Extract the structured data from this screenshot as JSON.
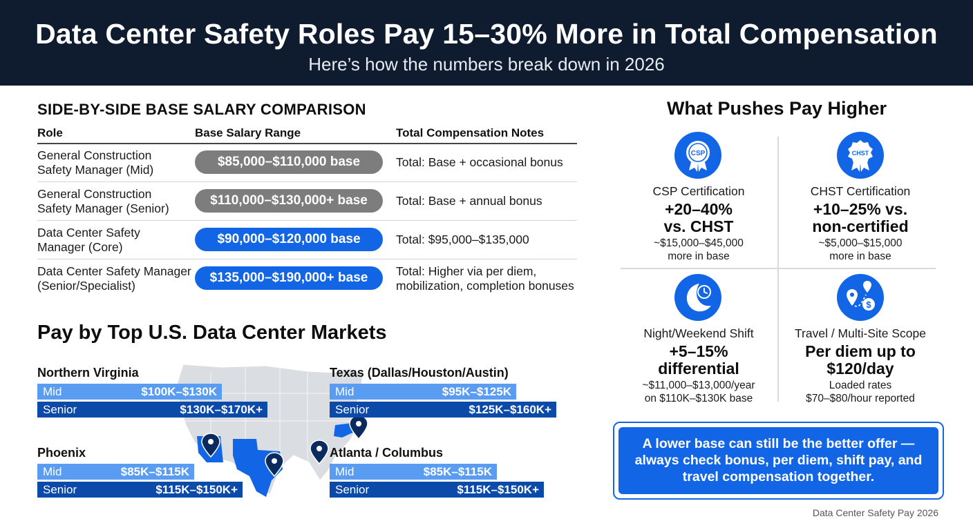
{
  "header": {
    "title": "Data Center Safety Roles Pay 15–30% More in Total Compensation",
    "subtitle": "Here’s how the numbers break down in 2026"
  },
  "comparison": {
    "title": "SIDE-BY-SIDE BASE SALARY COMPARISON",
    "columns": [
      "Role",
      "Base Salary Range",
      "Total Compensation Notes"
    ],
    "rows": [
      {
        "role": [
          "General Construction",
          "Safety Manager (Mid)"
        ],
        "range": "$85,000–$110,000 base",
        "note": [
          "Total: Base + occasional bonus"
        ],
        "style": "gray"
      },
      {
        "role": [
          "General Construction",
          "Safety Manager (Senior)"
        ],
        "range": "$110,000–$130,000+ base",
        "note": [
          "Total: Base + annual bonus"
        ],
        "style": "gray"
      },
      {
        "role": [
          "Data Center Safety",
          "Manager (Core)"
        ],
        "range": "$90,000–$120,000 base",
        "note": [
          "Total: $95,000–$135,000"
        ],
        "style": "blue"
      },
      {
        "role": [
          "Data Center Safety Manager",
          "(Senior/Specialist)"
        ],
        "range": "$135,000–$190,000+ base",
        "note": [
          "Total: Higher via per diem,",
          "mobilization, completion bonuses"
        ],
        "style": "blue"
      }
    ]
  },
  "markets": {
    "title": "Pay by Top U.S. Data Center Markets",
    "mid_label": "Mid",
    "senior_label": "Senior",
    "items": [
      {
        "name": "Northern Virginia",
        "mid": "$100K–$130K",
        "senior": "$130K–$170K+"
      },
      {
        "name": "Texas (Dallas/Houston/Austin)",
        "mid": "$95K–$125K",
        "senior": "$125K–$160K+"
      },
      {
        "name": "Phoenix",
        "mid": "$85K–$115K",
        "senior": "$115K–$150K+"
      },
      {
        "name": "Atlanta / Columbus",
        "mid": "$85K–$115K",
        "senior": "$115K–$150K+"
      }
    ]
  },
  "factors": {
    "title": "What Pushes Pay Higher",
    "items": [
      {
        "icon": "csp-badge-icon",
        "badge": "CSP",
        "name": "CSP Certification",
        "big": [
          "+20–40%",
          "vs. CHST"
        ],
        "small": [
          "~$15,000–$45,000",
          "more in base"
        ]
      },
      {
        "icon": "chst-badge-icon",
        "badge": "CHST",
        "name": "CHST Certification",
        "big": [
          "+10–25% vs.",
          "non-certified"
        ],
        "small": [
          "~$5,000–$15,000",
          "more in base"
        ]
      },
      {
        "icon": "moon-clock-icon",
        "name": "Night/Weekend Shift",
        "big": [
          "+5–15%",
          "differential"
        ],
        "small": [
          "~$11,000–$13,000/year",
          "on $110K–$130K base"
        ]
      },
      {
        "icon": "map-pin-dollar-icon",
        "name": "Travel / Multi-Site Scope",
        "big": [
          "Per diem up to",
          "$120/day"
        ],
        "small": [
          "Loaded rates",
          "$70–$80/hour reported"
        ]
      }
    ]
  },
  "callout": {
    "lines": [
      "A lower base can still be the better offer —",
      "always check bonus, per diem, shift pay, and",
      "travel compensation together."
    ]
  },
  "footer": "Data Center Safety Pay 2026",
  "colors": {
    "navy": "#0f1b2e",
    "blue": "#1266e6",
    "mid_bar": "#5b9cf3",
    "senior_bar": "#0b4aa8",
    "gray_pill": "#7d7d7d"
  }
}
